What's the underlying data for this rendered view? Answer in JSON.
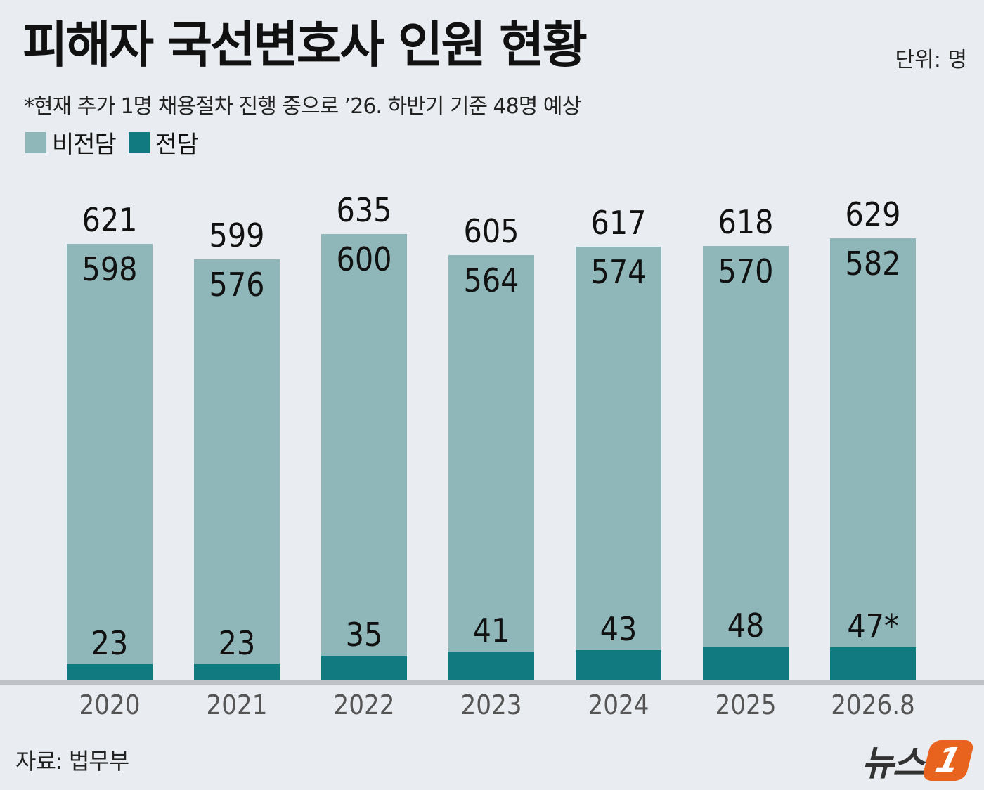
{
  "title": "피해자 국선변호사 인원 현황",
  "unit": "단위: 명",
  "note": "*현재 추가 1명 채용절차 진행 중으로 ’26. 하반기 기준 48명 예상",
  "legend": [
    {
      "label": "비전담",
      "color": "#8fb6b8"
    },
    {
      "label": "전담",
      "color": "#117a80"
    }
  ],
  "source": "자료: 법무부",
  "logo": {
    "text": "뉴스",
    "mark": "1"
  },
  "colors": {
    "non_dedicated": "#8fb6b8",
    "dedicated": "#117a80",
    "axis": "#bfc3c8",
    "tick_text": "#555555"
  },
  "chart_data": {
    "type": "bar",
    "stacked": true,
    "categories": [
      "2020",
      "2021",
      "2022",
      "2023",
      "2024",
      "2025",
      "2026.8"
    ],
    "series": [
      {
        "name": "전담",
        "values": [
          23,
          23,
          35,
          41,
          43,
          48,
          47
        ]
      },
      {
        "name": "비전담",
        "values": [
          598,
          576,
          600,
          564,
          574,
          570,
          582
        ]
      }
    ],
    "totals": [
      621,
      599,
      635,
      605,
      617,
      618,
      629
    ],
    "dedicated_labels": [
      "23",
      "23",
      "35",
      "41",
      "43",
      "48",
      "47*"
    ],
    "legend_position": "top-left",
    "grid": false
  }
}
